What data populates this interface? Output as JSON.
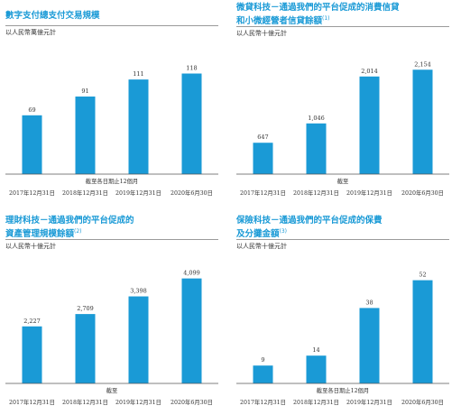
{
  "colors": {
    "title": "#1a9ad6",
    "bar": "#1a9ad6",
    "axis": "#555555",
    "rule": "#9a9a9a"
  },
  "chart_data": [
    {
      "type": "bar",
      "title": "數字支付總支付交易規模",
      "title_note": "",
      "unit": "以人民幣萬億元計",
      "axis_note": "截至各日期止12個月",
      "categories": [
        "2017年12月31日",
        "2018年12月31日",
        "2019年12月31日",
        "2020年6月30日"
      ],
      "values": [
        69,
        91,
        111,
        118
      ],
      "value_labels": [
        "69",
        "91",
        "111",
        "118"
      ],
      "ylim": [
        0,
        145
      ]
    },
    {
      "type": "bar",
      "title": "微貸科技－通過我們的平台促成的消費信貸和小微經營者信貸餘額",
      "title_lines": [
        "微貸科技－通過我們的平台促成的消費信貸",
        "和小微經營者信貸餘額"
      ],
      "title_note": "(1)",
      "unit": "以人民幣十億元計",
      "axis_note": "截至",
      "categories": [
        "2017年12月31日",
        "2018年12月31日",
        "2019年12月31日",
        "2020年6月30日"
      ],
      "values": [
        647,
        1046,
        2014,
        2154
      ],
      "value_labels": [
        "647",
        "1,046",
        "2,014",
        "2,154"
      ],
      "ylim": [
        0,
        2550
      ]
    },
    {
      "type": "bar",
      "title": "理財科技－通過我們的平台促成的資產管理規模餘額",
      "title_lines": [
        "理財科技－通過我們的平台促成的",
        "資產管理規模餘額"
      ],
      "title_note": "(2)",
      "unit": "以人民幣十億元計",
      "axis_note": "截至",
      "categories": [
        "2017年12月31日",
        "2018年12月31日",
        "2019年12月31日",
        "2020年6月30日"
      ],
      "values": [
        2227,
        2709,
        3398,
        4099
      ],
      "value_labels": [
        "2,227",
        "2,709",
        "3,398",
        "4,099"
      ],
      "ylim": [
        0,
        4650
      ]
    },
    {
      "type": "bar",
      "title": "保險科技－通過我們的平台促成的保費及分攤金額",
      "title_lines": [
        "保險科技－通過我們的平台促成的保費",
        "及分攤金額"
      ],
      "title_note": "(3)",
      "unit": "以人民幣十億元計",
      "axis_note": "截至各日期止12個月",
      "categories": [
        "2017年12月31日",
        "2018年12月31日",
        "2019年12月31日",
        "2020年6月30日"
      ],
      "values": [
        9,
        14,
        38,
        52
      ],
      "value_labels": [
        "9",
        "14",
        "38",
        "52"
      ],
      "ylim": [
        0,
        60
      ]
    }
  ]
}
